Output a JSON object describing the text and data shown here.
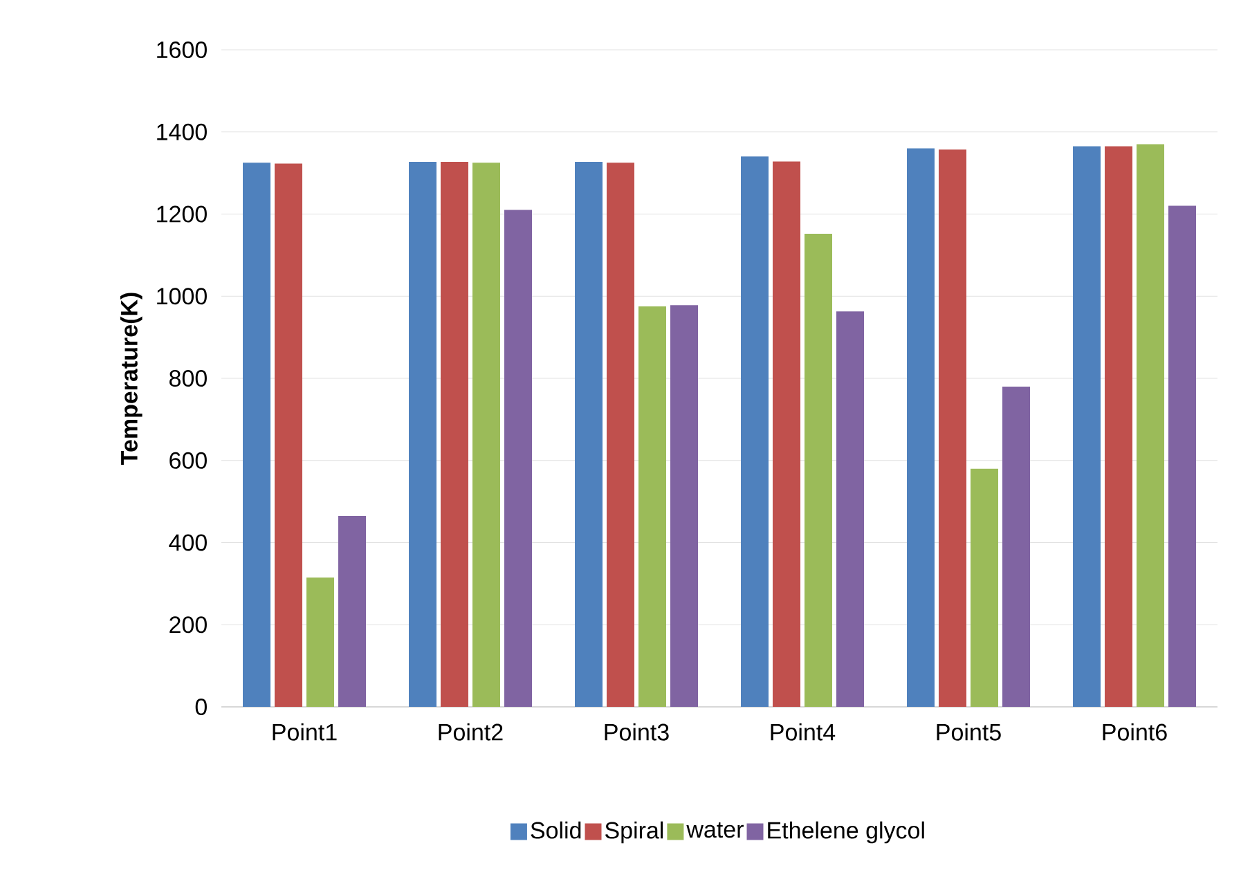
{
  "chart_data": {
    "type": "bar",
    "ylabel": "Temperature(K)",
    "categories": [
      "Point1",
      "Point2",
      "Point3",
      "Point4",
      "Point5",
      "Point6"
    ],
    "series": [
      {
        "name": "Solid",
        "color": "#4f81bd",
        "values": [
          1325,
          1327,
          1327,
          1340,
          1360,
          1365
        ]
      },
      {
        "name": "Spiral",
        "color": "#c0504d",
        "values": [
          1323,
          1327,
          1325,
          1328,
          1357,
          1365
        ]
      },
      {
        "name": "water",
        "color": "#9bbb59",
        "values": [
          315,
          1325,
          975,
          1152,
          580,
          1370
        ]
      },
      {
        "name": "Ethelene glycol",
        "color": "#8064a2",
        "values": [
          465,
          1210,
          978,
          963,
          780,
          1220
        ]
      }
    ],
    "ylim": [
      0,
      1600
    ],
    "yticks": [
      0,
      200,
      400,
      600,
      800,
      1000,
      1200,
      1400,
      1600
    ],
    "grid": "y",
    "legend": "bottom"
  }
}
